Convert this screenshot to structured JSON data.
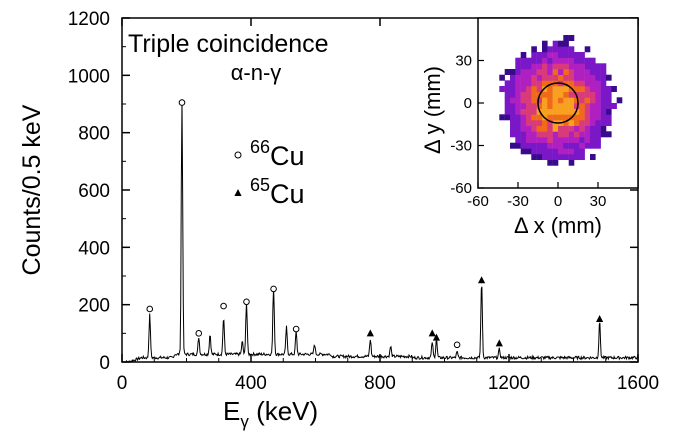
{
  "chart_data": [
    {
      "type": "line",
      "title_line1": "Triple coincidence",
      "title_line2": "α-n-γ",
      "xlabel_main": "E",
      "xlabel_sub": "γ",
      "xlabel_unit": " (keV)",
      "ylabel": "Counts/0.5 keV",
      "xlim": [
        0,
        1600
      ],
      "ylim": [
        0,
        1200
      ],
      "xticks": [
        0,
        400,
        800,
        1200,
        1600
      ],
      "yticks": [
        0,
        200,
        400,
        600,
        800,
        1000,
        1200
      ],
      "xtick_labels": [
        "0",
        "400",
        "800",
        "1200",
        "1600"
      ],
      "ytick_labels": [
        "0",
        "200",
        "400",
        "600",
        "800",
        "1000",
        "1200"
      ],
      "background_level": 15,
      "peaks": [
        {
          "x": 86,
          "y": 150
        },
        {
          "x": 186,
          "y": 890
        },
        {
          "x": 238,
          "y": 60
        },
        {
          "x": 273,
          "y": 70
        },
        {
          "x": 315,
          "y": 130
        },
        {
          "x": 373,
          "y": 45
        },
        {
          "x": 386,
          "y": 185
        },
        {
          "x": 470,
          "y": 240
        },
        {
          "x": 510,
          "y": 95
        },
        {
          "x": 540,
          "y": 80
        },
        {
          "x": 597,
          "y": 35
        },
        {
          "x": 770,
          "y": 60
        },
        {
          "x": 833,
          "y": 35
        },
        {
          "x": 962,
          "y": 55
        },
        {
          "x": 975,
          "y": 65
        },
        {
          "x": 1039,
          "y": 20
        },
        {
          "x": 1115,
          "y": 270
        },
        {
          "x": 1170,
          "y": 30
        },
        {
          "x": 1481,
          "y": 130
        }
      ],
      "markers": [
        {
          "label": "66Cu",
          "symbol": "circle",
          "x": 86,
          "y": 185
        },
        {
          "label": "66Cu",
          "symbol": "circle",
          "x": 186,
          "y": 905
        },
        {
          "label": "66Cu",
          "symbol": "circle",
          "x": 238,
          "y": 100
        },
        {
          "label": "66Cu",
          "symbol": "circle",
          "x": 315,
          "y": 195
        },
        {
          "label": "66Cu",
          "symbol": "circle",
          "x": 386,
          "y": 210
        },
        {
          "label": "66Cu",
          "symbol": "circle",
          "x": 470,
          "y": 255
        },
        {
          "label": "66Cu",
          "symbol": "circle",
          "x": 540,
          "y": 115
        },
        {
          "label": "66Cu",
          "symbol": "circle",
          "x": 1039,
          "y": 60
        },
        {
          "label": "65Cu",
          "symbol": "triangle",
          "x": 770,
          "y": 100
        },
        {
          "label": "65Cu",
          "symbol": "triangle",
          "x": 962,
          "y": 100
        },
        {
          "label": "65Cu",
          "symbol": "triangle",
          "x": 975,
          "y": 85
        },
        {
          "label": "65Cu",
          "symbol": "triangle",
          "x": 1115,
          "y": 285
        },
        {
          "label": "65Cu",
          "symbol": "triangle",
          "x": 1170,
          "y": 65
        },
        {
          "label": "65Cu",
          "symbol": "triangle",
          "x": 1481,
          "y": 150
        }
      ],
      "legend": [
        {
          "mass": "66",
          "element": "Cu",
          "symbol": "circle"
        },
        {
          "mass": "65",
          "element": "Cu",
          "symbol": "triangle"
        }
      ],
      "legend_position": "center"
    },
    {
      "type": "heatmap",
      "xlabel": "Δ x (mm)",
      "ylabel": "Δ y (mm)",
      "xlim": [
        -60,
        60
      ],
      "ylim": [
        -60,
        60
      ],
      "xticks": [
        -60,
        -30,
        0,
        30
      ],
      "yticks": [
        -60,
        -30,
        0,
        30
      ],
      "xtick_labels": [
        "-60",
        "-30",
        "0",
        "30"
      ],
      "ytick_labels": [
        "-60",
        "-30",
        "0",
        "30"
      ],
      "center": [
        0,
        0
      ],
      "spread_mm": 22,
      "circle_radius_mm": 15,
      "colormap": [
        "#3a0a8c",
        "#7a18c8",
        "#b020c0",
        "#d83a7a",
        "#f06a1a",
        "#f8a020"
      ],
      "position": "top-right"
    }
  ]
}
